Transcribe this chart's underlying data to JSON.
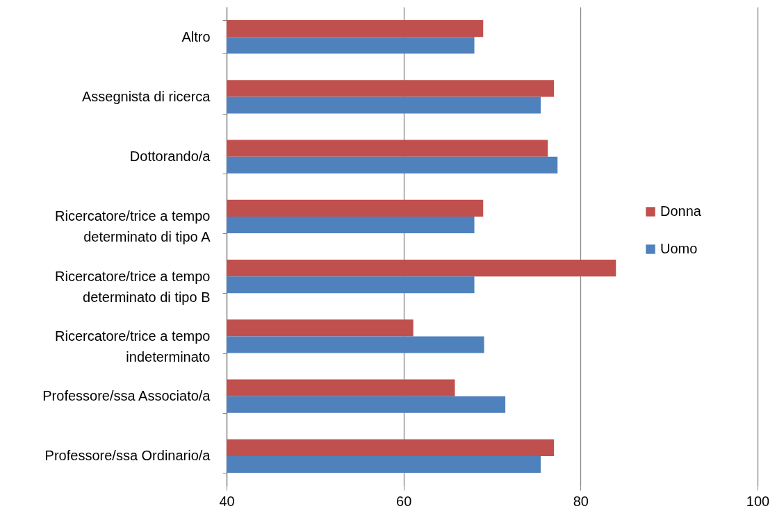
{
  "chart_data": {
    "type": "bar",
    "orientation": "horizontal",
    "categories": [
      "Altro",
      "Assegnista di ricerca",
      "Dottorando/a",
      "Ricercatore/trice a tempo determinato di tipo A",
      "Ricercatore/trice a tempo determinato di tipo B",
      "Ricercatore/trice a tempo indeterminato",
      "Professore/ssa Associato/a",
      "Professore/ssa Ordinario/a"
    ],
    "series": [
      {
        "name": "Donna",
        "color": "#c0504d",
        "values": [
          69,
          77,
          76.3,
          69,
          84,
          61.1,
          65.8,
          77
        ]
      },
      {
        "name": "Uomo",
        "color": "#4f81bd",
        "values": [
          68,
          75.5,
          77.4,
          68,
          68,
          69.1,
          71.5,
          75.5
        ]
      }
    ],
    "xlim": [
      40,
      100
    ],
    "xticks": [
      40,
      60,
      80,
      100
    ],
    "grid": "x",
    "legend": "right"
  }
}
